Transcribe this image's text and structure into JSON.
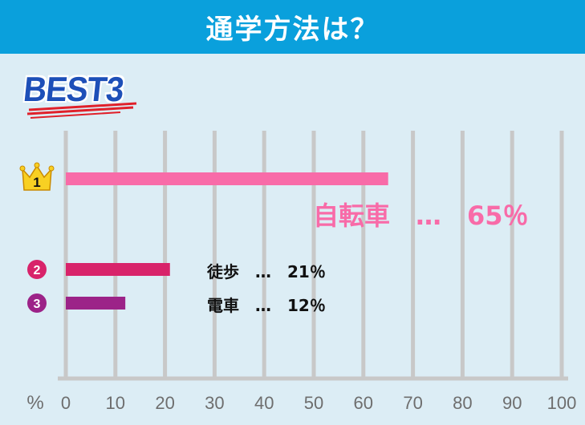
{
  "header": {
    "title": "通学方法は？"
  },
  "badge": {
    "text": "BEST3"
  },
  "colors": {
    "header_bg": "#0aa0dc",
    "background": "#dcedf5",
    "grid": "#c8c8c8",
    "rank1": "#f86ba8",
    "rank2": "#d8236a",
    "rank3": "#9c2388",
    "badge_text": "#1d4fb8",
    "badge_underline": "#e0202a",
    "crown": "#f8d023"
  },
  "chart_data": {
    "type": "bar",
    "orientation": "horizontal",
    "categories": [
      "自転車",
      "徒歩",
      "電車"
    ],
    "values": [
      65,
      21,
      12
    ],
    "value_labels": [
      "自転車　…　65％",
      "徒歩　…　21％",
      "電車　…　12％"
    ],
    "rank_markers": [
      "1",
      "2",
      "3"
    ],
    "rank_icons": [
      "crown-icon",
      "circle-2-icon",
      "circle-3-icon"
    ],
    "xunit": "%",
    "xticks": [
      0,
      10,
      20,
      30,
      40,
      50,
      60,
      70,
      80,
      90,
      100
    ],
    "xlim": [
      0,
      100
    ],
    "grid": true,
    "legend": "none"
  }
}
